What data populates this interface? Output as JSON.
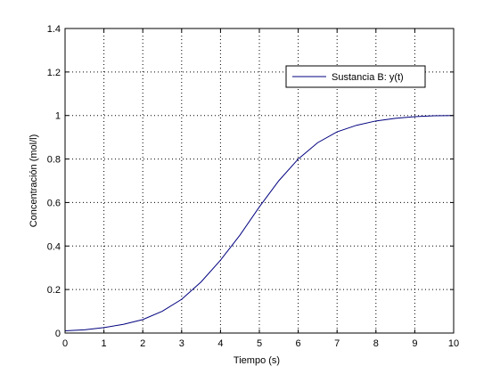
{
  "chart_data": {
    "type": "line",
    "title": "",
    "xlabel": "Tiempo (s)",
    "ylabel": "Concentración (mol/l)",
    "xlim": [
      0,
      10
    ],
    "ylim": [
      0,
      1.4
    ],
    "xticks": [
      0,
      1,
      2,
      3,
      4,
      5,
      6,
      7,
      8,
      9,
      10
    ],
    "yticks": [
      0,
      0.2,
      0.4,
      0.6,
      0.8,
      1,
      1.2,
      1.4
    ],
    "grid": true,
    "legend_position": "top-right",
    "series": [
      {
        "name": "Sustancia B: y(t)",
        "color": "#00007f",
        "x": [
          0,
          0.5,
          1,
          1.5,
          2,
          2.5,
          3,
          3.5,
          4,
          4.5,
          5,
          5.5,
          6,
          6.5,
          7,
          7.5,
          8,
          8.5,
          9,
          9.5,
          10
        ],
        "y": [
          0.01,
          0.015,
          0.025,
          0.04,
          0.062,
          0.1,
          0.155,
          0.235,
          0.335,
          0.45,
          0.58,
          0.7,
          0.8,
          0.875,
          0.925,
          0.955,
          0.975,
          0.987,
          0.995,
          0.999,
          1.0
        ]
      }
    ]
  }
}
